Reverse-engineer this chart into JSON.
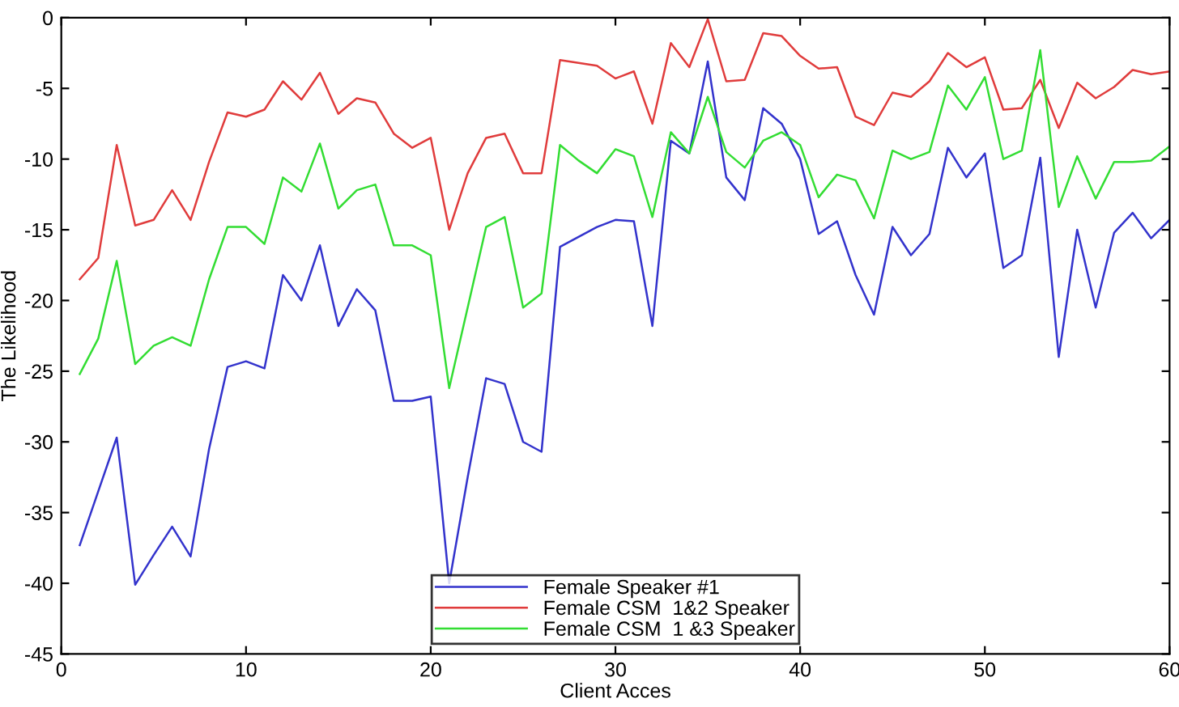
{
  "chart_data": {
    "type": "line",
    "xlabel": "Client Acces",
    "ylabel": "The Likelihood",
    "x": [
      1,
      2,
      3,
      4,
      5,
      6,
      7,
      8,
      9,
      10,
      11,
      12,
      13,
      14,
      15,
      16,
      17,
      18,
      19,
      20,
      21,
      22,
      23,
      24,
      25,
      26,
      27,
      28,
      29,
      30,
      31,
      32,
      33,
      34,
      35,
      36,
      37,
      38,
      39,
      40,
      41,
      42,
      43,
      44,
      45,
      46,
      47,
      48,
      49,
      50,
      51,
      52,
      53,
      54,
      55,
      56,
      57,
      58,
      59,
      60
    ],
    "series": [
      {
        "name": "Female Speaker #1",
        "color": "#3333cc",
        "values": [
          -37.3,
          -33.5,
          -29.7,
          -40.1,
          -38,
          -36,
          -38.1,
          -30.5,
          -24.7,
          -24.3,
          -24.8,
          -18.2,
          -20,
          -16.1,
          -21.8,
          -19.2,
          -20.7,
          -27.1,
          -27.1,
          -26.8,
          -40,
          -32.5,
          -25.5,
          -25.9,
          -30,
          -30.7,
          -16.2,
          -15.5,
          -14.8,
          -14.3,
          -14.4,
          -21.8,
          -8.7,
          -9.6,
          -3.1,
          -11.3,
          -12.9,
          -6.4,
          -7.5,
          -10,
          -15.3,
          -14.4,
          -18.2,
          -21,
          -14.8,
          -16.8,
          -15.3,
          -9.2,
          -11.3,
          -9.6,
          -17.7,
          -16.8,
          -9.9,
          -24,
          -15,
          -20.5,
          -15.2,
          -13.8,
          -15.6,
          -14.3
        ]
      },
      {
        "name": "Female CSM  1&2 Speaker",
        "color": "#e03c3c",
        "values": [
          -18.5,
          -17,
          -9,
          -14.7,
          -14.3,
          -12.2,
          -14.3,
          -10.2,
          -6.7,
          -7,
          -6.5,
          -4.5,
          -5.8,
          -3.9,
          -6.8,
          -5.7,
          -6,
          -8.2,
          -9.2,
          -8.5,
          -15,
          -11,
          -8.5,
          -8.2,
          -11,
          -11,
          -3,
          -3.2,
          -3.4,
          -4.3,
          -3.8,
          -7.5,
          -1.8,
          -3.5,
          -0.1,
          -4.5,
          -4.4,
          -1.1,
          -1.3,
          -2.7,
          -3.6,
          -3.5,
          -7,
          -7.6,
          -5.3,
          -5.6,
          -4.5,
          -2.5,
          -3.5,
          -2.8,
          -6.5,
          -6.4,
          -4.4,
          -7.8,
          -4.6,
          -5.7,
          -4.9,
          -3.7,
          -4,
          -3.8
        ]
      },
      {
        "name": "Female CSM  1 &3 Speaker",
        "color": "#33dd33",
        "values": [
          -25.2,
          -22.7,
          -17.2,
          -24.5,
          -23.2,
          -22.6,
          -23.2,
          -18.5,
          -14.8,
          -14.8,
          -16,
          -11.3,
          -12.3,
          -8.9,
          -13.5,
          -12.2,
          -11.8,
          -16.1,
          -16.1,
          -16.8,
          -26.2,
          -20.5,
          -14.8,
          -14.1,
          -20.5,
          -19.5,
          -9,
          -10.1,
          -11,
          -9.3,
          -9.8,
          -14.1,
          -8.1,
          -9.6,
          -5.6,
          -9.5,
          -10.6,
          -8.7,
          -8.1,
          -9,
          -12.7,
          -11.1,
          -11.5,
          -14.2,
          -9.4,
          -10,
          -9.5,
          -4.8,
          -6.5,
          -4.2,
          -10,
          -9.4,
          -2.3,
          -13.4,
          -9.8,
          -12.8,
          -10.2,
          -10.2,
          -10.1,
          -9.1
        ]
      }
    ],
    "xlim": [
      0,
      60
    ],
    "xticks": [
      0,
      10,
      20,
      30,
      40,
      50,
      60
    ],
    "ylim": [
      -45,
      0
    ],
    "yticks": [
      -45,
      -40,
      -35,
      -30,
      -25,
      -20,
      -15,
      -10,
      -5,
      0
    ],
    "legend": "bottom",
    "grid": false
  }
}
